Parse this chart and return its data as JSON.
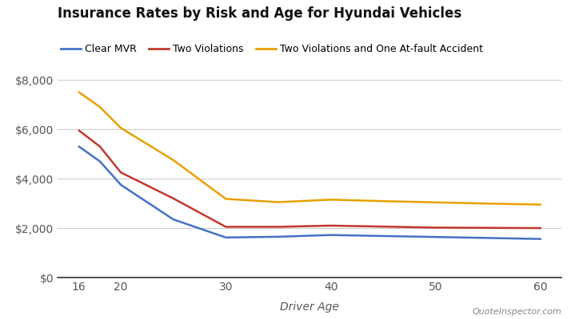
{
  "title": "Insurance Rates by Risk and Age for Hyundai Vehicles",
  "xlabel": "Driver Age",
  "legend_labels": [
    "Clear MVR",
    "Two Violations",
    "Two Violations and One At-fault Accident"
  ],
  "line_colors": [
    "#4472C4",
    "#C0392B",
    "#E8A000"
  ],
  "ages": [
    16,
    18,
    20,
    25,
    30,
    35,
    40,
    45,
    50,
    55,
    60
  ],
  "clear_mvr": [
    5300,
    4700,
    3750,
    2350,
    1620,
    1650,
    1720,
    1680,
    1640,
    1600,
    1560
  ],
  "two_violations": [
    5950,
    5300,
    4250,
    3200,
    2050,
    2050,
    2100,
    2060,
    2020,
    2010,
    2000
  ],
  "two_viol_acc": [
    7500,
    6900,
    6050,
    4750,
    3180,
    3050,
    3150,
    3090,
    3040,
    2990,
    2950
  ],
  "ylim": [
    0,
    8000
  ],
  "yticks": [
    0,
    2000,
    4000,
    6000,
    8000
  ],
  "xticks": [
    16,
    20,
    30,
    40,
    50,
    60
  ],
  "background_color": "#ffffff",
  "grid_color": "#cccccc",
  "line_width": 1.8,
  "title_fontsize": 12,
  "label_fontsize": 10,
  "tick_fontsize": 10,
  "legend_fontsize": 9,
  "watermark": "QuoteInspector.com"
}
